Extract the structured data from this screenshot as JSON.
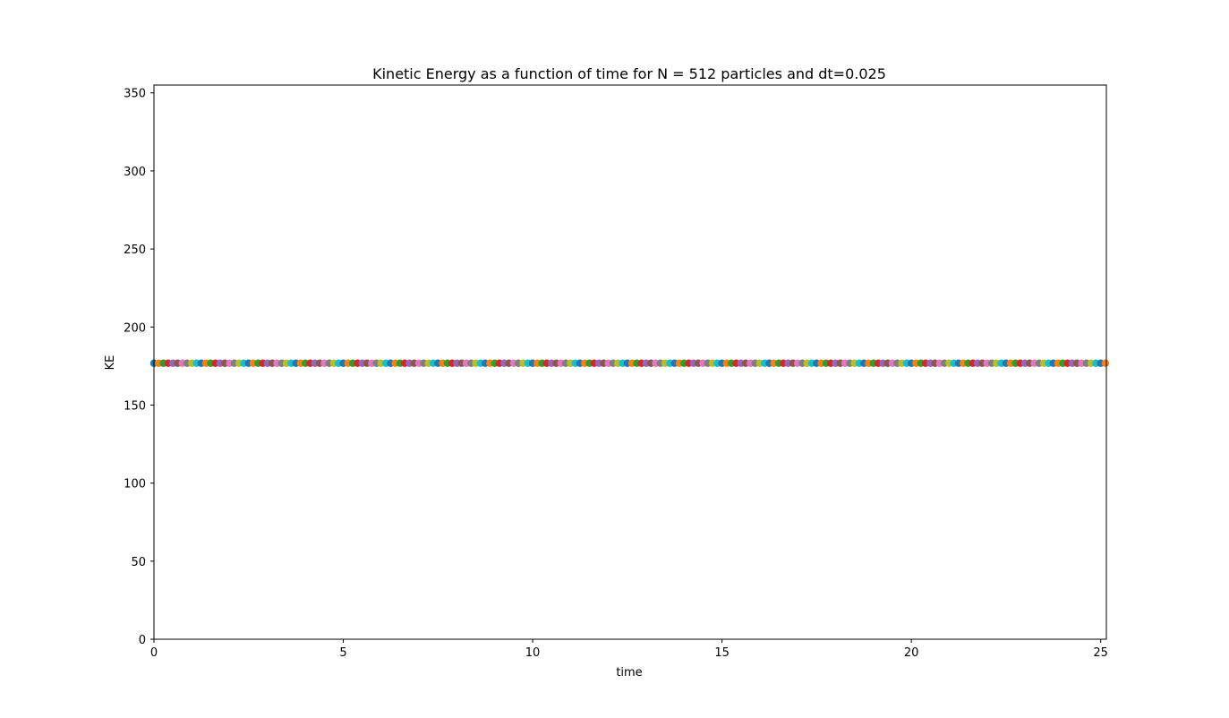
{
  "chart_data": {
    "type": "scatter",
    "title": "Kinetic Energy as a function of time for N = 512 particles and dt=0.025",
    "xlabel": "time",
    "ylabel": "KE",
    "xlim": [
      0,
      25.15
    ],
    "ylim": [
      0,
      355
    ],
    "xticks": [
      "0",
      "5",
      "10",
      "15",
      "20",
      "25"
    ],
    "yticks": [
      "0",
      "50",
      "100",
      "150",
      "200",
      "250",
      "300",
      "350"
    ],
    "grid": false,
    "legend": "none",
    "series": [
      {
        "x_start": 0,
        "x_end": 25.15,
        "x_step": 0.125,
        "y": 176.8
      }
    ],
    "colors": [
      "#1f77b4",
      "#ff7f0e",
      "#2ca02c",
      "#d62728",
      "#9467bd",
      "#8c564b",
      "#e377c2",
      "#7f7f7f",
      "#bcbd22",
      "#17becf"
    ]
  }
}
